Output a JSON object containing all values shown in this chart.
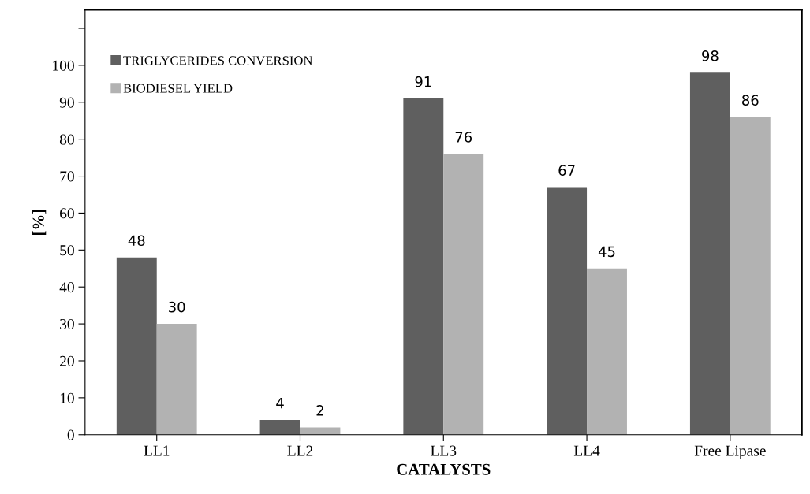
{
  "chart_data": {
    "type": "bar",
    "xlabel": "CATALYSTS",
    "ylabel": "[%]",
    "categories": [
      "LL1",
      "LL2",
      "LL3",
      "LL4",
      "Free Lipase"
    ],
    "series": [
      {
        "name": "TRIGLYCERIDES CONVERSION",
        "color": "#5f5f5f",
        "values": [
          48,
          4,
          91,
          67,
          98
        ]
      },
      {
        "name": "BIODIESEL YIELD",
        "color": "#b2b2b2",
        "values": [
          30,
          2,
          76,
          45,
          86
        ]
      }
    ],
    "ylim": [
      0,
      115
    ],
    "yticks": [
      0,
      10,
      20,
      30,
      40,
      50,
      60,
      70,
      80,
      90,
      100,
      {
        "value": 110,
        "label": null
      }
    ],
    "data_labels": true,
    "legend": "top left",
    "grid": false
  }
}
